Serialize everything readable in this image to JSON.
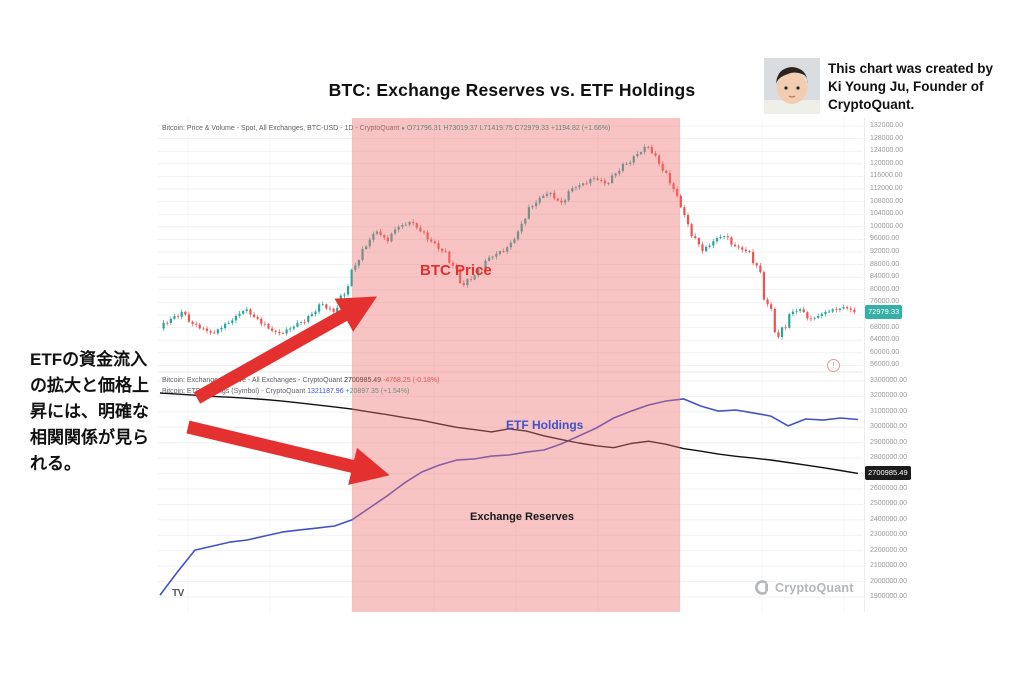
{
  "page": {
    "title": "BTC: Exchange Reserves vs. ETF Holdings",
    "annotation_jp": "ETFの資金流入\nの拡大と価格上\n昇には、明確な\n相関関係が見ら\nれる。",
    "attribution": "This chart was created by\nKi Young Ju, Founder of\nCryptoQuant.",
    "watermark": "CryptoQuant",
    "tv_logo": "TV",
    "alert_glyph": "!"
  },
  "labels": {
    "btc_price": "BTC Price",
    "etf_holdings": "ETF Holdings",
    "exchange_reserves": "Exchange Reserves"
  },
  "colors": {
    "accent_red": "#e53030",
    "pink_highlight": "rgba(239,111,111,0.42)",
    "candle_up": "#26a69a",
    "candle_down": "#ef5350",
    "reserve_line": "#111111",
    "etf_line": "#4152c9",
    "btc_label": "#e03131",
    "price_badge_bg": "#35b0a5",
    "reserve_badge_bg": "#1c1c1c"
  },
  "chart_data": [
    {
      "type": "candlestick",
      "title_text": "Bitcoin: Price & Volume - Spot, All Exchanges, BTC-USD - 1D - CryptoQuant",
      "legend_ohlc": "O71796.31 H73019.37 L71419.75 C72979.33 +1194.82 (+1.66%)",
      "last_price": 72979.33,
      "last_price_text": "72979.33",
      "y_axis": {
        "top_tick": 132000,
        "step": 4000,
        "count": 20,
        "unit": "USD"
      },
      "series": [
        {
          "name": "BTC Price",
          "values": [
            67700,
            70800,
            73000,
            69200,
            67700,
            66200,
            69200,
            71700,
            73800,
            70800,
            67700,
            66200,
            67700,
            69800,
            72300,
            75400,
            73000,
            78500,
            87700,
            93800,
            98500,
            95400,
            100000,
            101500,
            98500,
            95400,
            92300,
            87700,
            81500,
            84600,
            89200,
            91400,
            93500,
            98500,
            106200,
            109200,
            110800,
            107700,
            112300,
            113800,
            115400,
            113800,
            116900,
            120000,
            123100,
            125300,
            120000,
            113800,
            106200,
            97000,
            92300,
            95400,
            97000,
            93800,
            92300,
            87700,
            75400,
            65000,
            72300,
            73800,
            70800,
            72300,
            73800,
            74500,
            72979
          ]
        }
      ]
    },
    {
      "type": "line",
      "y_axis": {
        "top_tick": 3300000,
        "step": 100000,
        "count": 15,
        "unit": "BTC"
      },
      "series": [
        {
          "name": "Exchange Reserves",
          "title_text": "Bitcoin: Exchange Reserve - All Exchanges - CryptoQuant",
          "value_text": "2700985.49",
          "change_text": "-4768.25 (-0.18%)",
          "last_value": 2700985.49,
          "last_value_text": "2700985.49",
          "values": [
            3222000,
            3215000,
            3208000,
            3200000,
            3195000,
            3188000,
            3180000,
            3170000,
            3158000,
            3145000,
            3132000,
            3118000,
            3100000,
            3082000,
            3063000,
            3045000,
            3022000,
            3000000,
            2985000,
            2970000,
            2990000,
            2975000,
            2945000,
            2920000,
            2898000,
            2880000,
            2868000,
            2895000,
            2910000,
            2890000,
            2862000,
            2845000,
            2826000,
            2812000,
            2800000,
            2788000,
            2772000,
            2755000,
            2738000,
            2720000,
            2700985
          ]
        },
        {
          "name": "ETF Holdings",
          "title_text": "Bitcoin: ETF Holdings (Symbol) - CryptoQuant",
          "value_text": "1321187.96",
          "change_text": "+20897.35 (+1.54%)",
          "last_value": 1321187.96,
          "hidden_axis": {
            "top": 1410000,
            "bottom": 645000
          },
          "values": [
            658000,
            745000,
            828000,
            843000,
            858000,
            866000,
            881000,
            896000,
            904000,
            911000,
            919000,
            942000,
            987000,
            1032000,
            1081000,
            1123000,
            1149000,
            1168000,
            1172000,
            1183000,
            1187000,
            1198000,
            1206000,
            1229000,
            1259000,
            1289000,
            1327000,
            1353000,
            1376000,
            1391000,
            1399000,
            1372000,
            1353000,
            1357000,
            1346000,
            1334000,
            1297000,
            1323000,
            1319000,
            1327000,
            1321188
          ]
        }
      ]
    }
  ]
}
